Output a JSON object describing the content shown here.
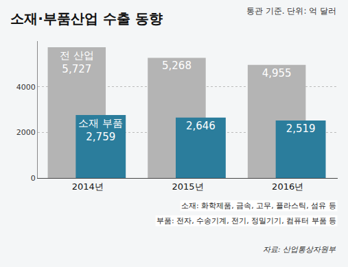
{
  "chart_data": {
    "type": "bar",
    "title": "소재·부품산업 수출 동향",
    "subtitle": "통관 기준. 단위: 억 달러",
    "categories": [
      "2014년",
      "2015년",
      "2016년"
    ],
    "series": [
      {
        "name": "전 산업",
        "color": "#b4b4b4",
        "values": [
          5727,
          5268,
          4955
        ],
        "value_labels": [
          "5,727",
          "5,268",
          "4,955"
        ]
      },
      {
        "name": "소재 부품",
        "color": "#2b7d9c",
        "values": [
          2759,
          2646,
          2519
        ],
        "value_labels": [
          "2,759",
          "2,646",
          "2,519"
        ]
      }
    ],
    "ylim": [
      0,
      6000
    ],
    "yticks": [
      0,
      2000,
      4000
    ],
    "grid": true,
    "data_labels": true,
    "annotations": [
      "소재: 화학제품, 금속, 고무, 플라스틱, 섬유 등",
      "부품: 전자, 수송기계, 전기, 정밀기기, 컴퓨터 부품 등"
    ],
    "source": "자료: 산업통상자원부"
  }
}
